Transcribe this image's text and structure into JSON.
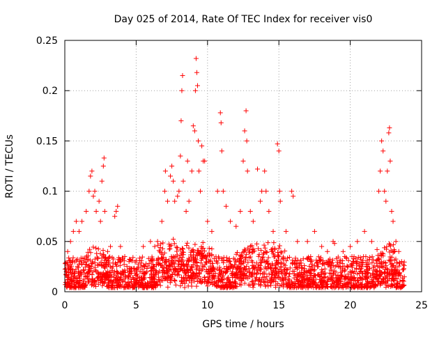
{
  "chart_data": {
    "type": "scatter",
    "title": "Day 025 of 2014, Rate Of TEC Index for receiver vis0",
    "xlabel": "GPS time / hours",
    "ylabel": "ROTI / TECUs",
    "xlim": [
      0,
      25
    ],
    "ylim": [
      0,
      0.25
    ],
    "xticks": [
      0,
      5,
      10,
      15,
      20,
      25
    ],
    "yticks": [
      0,
      0.05,
      0.1,
      0.15,
      0.2,
      0.25
    ],
    "xtick_labels": [
      "0",
      "5",
      "10",
      "15",
      "20",
      "25"
    ],
    "ytick_labels": [
      "0",
      "0.05",
      "0.1",
      "0.15",
      "0.2",
      "0.25"
    ],
    "grid": true,
    "marker": "+",
    "color": "#ff0000",
    "background_band": {
      "x_range": [
        0,
        23.8
      ],
      "typical_range": [
        0.004,
        0.035
      ],
      "note": "dense cloud of observations across the day"
    },
    "series": [
      {
        "name": "ROTI",
        "points": [
          [
            0.1,
            0.02
          ],
          [
            0.2,
            0.04
          ],
          [
            0.4,
            0.05
          ],
          [
            0.6,
            0.06
          ],
          [
            0.8,
            0.07
          ],
          [
            1.0,
            0.06
          ],
          [
            1.2,
            0.07
          ],
          [
            1.5,
            0.08
          ],
          [
            1.7,
            0.1
          ],
          [
            1.8,
            0.115
          ],
          [
            1.9,
            0.12
          ],
          [
            2.0,
            0.095
          ],
          [
            2.1,
            0.1
          ],
          [
            2.2,
            0.08
          ],
          [
            2.4,
            0.09
          ],
          [
            2.5,
            0.07
          ],
          [
            2.6,
            0.11
          ],
          [
            2.7,
            0.125
          ],
          [
            2.75,
            0.133
          ],
          [
            2.8,
            0.08
          ],
          [
            3.0,
            0.04
          ],
          [
            3.2,
            0.045
          ],
          [
            3.5,
            0.075
          ],
          [
            3.6,
            0.08
          ],
          [
            3.7,
            0.085
          ],
          [
            3.9,
            0.045
          ],
          [
            4.2,
            0.035
          ],
          [
            4.5,
            0.03
          ],
          [
            5.0,
            0.02
          ],
          [
            5.5,
            0.045
          ],
          [
            6.0,
            0.05
          ],
          [
            6.3,
            0.045
          ],
          [
            6.5,
            0.05
          ],
          [
            6.8,
            0.07
          ],
          [
            7.0,
            0.1
          ],
          [
            7.05,
            0.12
          ],
          [
            7.2,
            0.09
          ],
          [
            7.4,
            0.115
          ],
          [
            7.5,
            0.125
          ],
          [
            7.6,
            0.11
          ],
          [
            7.7,
            0.09
          ],
          [
            7.9,
            0.095
          ],
          [
            8.0,
            0.1
          ],
          [
            8.1,
            0.135
          ],
          [
            8.15,
            0.17
          ],
          [
            8.2,
            0.2
          ],
          [
            8.25,
            0.215
          ],
          [
            8.3,
            0.11
          ],
          [
            8.5,
            0.08
          ],
          [
            8.6,
            0.13
          ],
          [
            8.7,
            0.09
          ],
          [
            8.9,
            0.12
          ],
          [
            9.0,
            0.165
          ],
          [
            9.1,
            0.16
          ],
          [
            9.15,
            0.2
          ],
          [
            9.2,
            0.232
          ],
          [
            9.25,
            0.218
          ],
          [
            9.3,
            0.205
          ],
          [
            9.35,
            0.15
          ],
          [
            9.4,
            0.12
          ],
          [
            9.5,
            0.1
          ],
          [
            9.6,
            0.145
          ],
          [
            9.7,
            0.13
          ],
          [
            9.8,
            0.13
          ],
          [
            10.0,
            0.07
          ],
          [
            10.3,
            0.06
          ],
          [
            10.7,
            0.1
          ],
          [
            10.9,
            0.178
          ],
          [
            10.95,
            0.168
          ],
          [
            11.0,
            0.14
          ],
          [
            11.1,
            0.1
          ],
          [
            11.3,
            0.085
          ],
          [
            11.6,
            0.07
          ],
          [
            12.0,
            0.065
          ],
          [
            12.3,
            0.08
          ],
          [
            12.5,
            0.13
          ],
          [
            12.6,
            0.16
          ],
          [
            12.7,
            0.18
          ],
          [
            12.75,
            0.15
          ],
          [
            12.8,
            0.12
          ],
          [
            13.0,
            0.08
          ],
          [
            13.2,
            0.07
          ],
          [
            13.5,
            0.122
          ],
          [
            13.7,
            0.09
          ],
          [
            13.8,
            0.1
          ],
          [
            14.0,
            0.12
          ],
          [
            14.1,
            0.1
          ],
          [
            14.3,
            0.08
          ],
          [
            14.6,
            0.06
          ],
          [
            14.9,
            0.147
          ],
          [
            15.0,
            0.14
          ],
          [
            15.05,
            0.1
          ],
          [
            15.1,
            0.09
          ],
          [
            15.5,
            0.06
          ],
          [
            15.9,
            0.1
          ],
          [
            16.0,
            0.095
          ],
          [
            16.3,
            0.05
          ],
          [
            17.0,
            0.05
          ],
          [
            17.5,
            0.06
          ],
          [
            18.0,
            0.045
          ],
          [
            18.4,
            0.04
          ],
          [
            18.8,
            0.05
          ],
          [
            18.9,
            0.048
          ],
          [
            19.5,
            0.04
          ],
          [
            20.0,
            0.045
          ],
          [
            20.5,
            0.05
          ],
          [
            21.0,
            0.06
          ],
          [
            21.5,
            0.05
          ],
          [
            22.0,
            0.1
          ],
          [
            22.1,
            0.12
          ],
          [
            22.2,
            0.15
          ],
          [
            22.3,
            0.14
          ],
          [
            22.4,
            0.1
          ],
          [
            22.5,
            0.09
          ],
          [
            22.6,
            0.12
          ],
          [
            22.7,
            0.158
          ],
          [
            22.75,
            0.163
          ],
          [
            22.8,
            0.13
          ],
          [
            22.9,
            0.08
          ],
          [
            23.0,
            0.07
          ],
          [
            23.2,
            0.05
          ],
          [
            23.4,
            0.04
          ],
          [
            23.6,
            0.03
          ]
        ]
      }
    ]
  }
}
